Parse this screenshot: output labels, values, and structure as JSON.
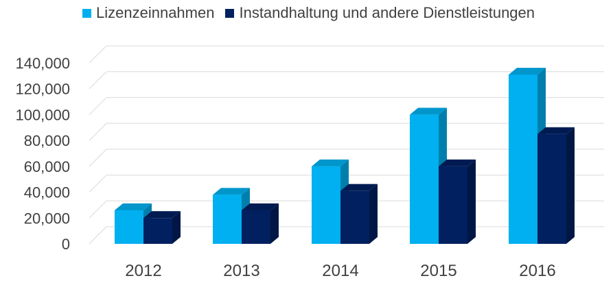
{
  "chart_data": {
    "type": "bar",
    "categories": [
      "2012",
      "2013",
      "2014",
      "2015",
      "2016"
    ],
    "series": [
      {
        "name": "Lizenzeinnahmen",
        "color": "#00b0f0",
        "values": [
          26000,
          38000,
          60000,
          100000,
          131000
        ]
      },
      {
        "name": "Instandhaltung und andere Dienstleistungen",
        "color": "#002060",
        "values": [
          20000,
          26000,
          41000,
          60000,
          85000
        ]
      }
    ],
    "y_ticks": [
      "0",
      "20,000",
      "40,000",
      "60,000",
      "80,000",
      "100,000",
      "120,000",
      "140,000"
    ],
    "ylim": [
      0,
      140000
    ],
    "grid": true,
    "legend_position": "top",
    "style": "3d-clustered-column"
  }
}
